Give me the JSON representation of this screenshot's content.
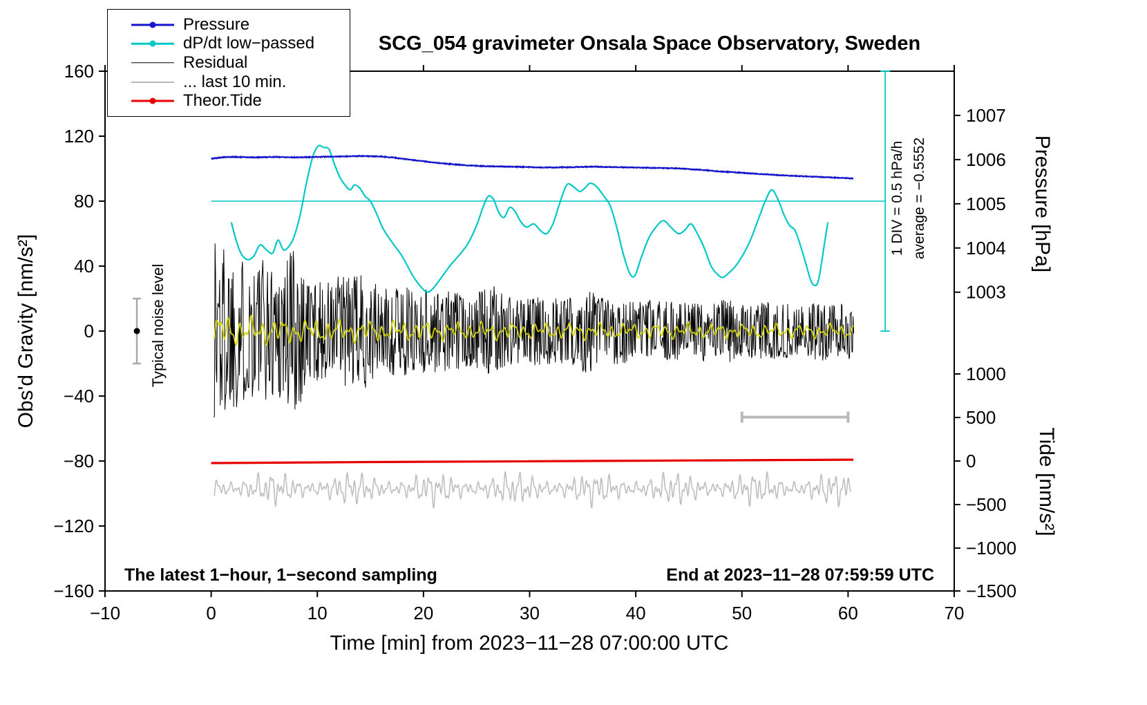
{
  "title": "SCG_054 gravimeter Onsala Space Observatory, Sweden",
  "legend": {
    "items": [
      {
        "id": "pressure",
        "label": "Pressure",
        "color": "#1414CC",
        "dot": true,
        "line_width": 3
      },
      {
        "id": "dpdt",
        "label": "dP/dt low−passed",
        "color": "#00C8C8",
        "dot": true,
        "line_width": 2.5
      },
      {
        "id": "residual",
        "label": "Residual",
        "color": "#000000",
        "dot": false,
        "line_width": 1.5
      },
      {
        "id": "last10",
        "label": "... last 10 min.",
        "color": "#B8B8B8",
        "dot": false,
        "line_width": 2
      },
      {
        "id": "tide",
        "label": "Theor.Tide",
        "color": "#E60000",
        "dot": true,
        "line_width": 3
      }
    ]
  },
  "chart_data": {
    "type": "line",
    "title": "SCG_054 gravimeter Onsala Space Observatory, Sweden",
    "x_axis": {
      "label": "Time [min] from 2023−11−28 07:00:00 UTC",
      "range": [
        -10,
        70
      ],
      "tick_values": [
        -10,
        0,
        10,
        20,
        30,
        40,
        50,
        60,
        70
      ],
      "tick_labels": [
        "−10",
        "0",
        "10",
        "20",
        "30",
        "40",
        "50",
        "60",
        "70"
      ]
    },
    "y_left": {
      "label": "Obs'd Gravity [nm/s²]",
      "range": [
        -160,
        160
      ],
      "tick_values": [
        -160,
        -120,
        -80,
        -40,
        0,
        40,
        80,
        120,
        160
      ],
      "tick_labels": [
        "−160",
        "−120",
        "−80",
        "−40",
        "0",
        "40",
        "80",
        "120",
        "160"
      ]
    },
    "y_right_pressure": {
      "label": "Pressure [hPa]",
      "tick_values": [
        1003,
        1004,
        1005,
        1006,
        1007
      ],
      "tick_labels": [
        "1003",
        "1004",
        "1005",
        "1006",
        "1007"
      ],
      "range_equiv": [
        996.24,
        1008.0
      ]
    },
    "y_right_tide": {
      "label": "Tide [nm/s²]",
      "tick_values": [
        -1500,
        -1000,
        -500,
        0,
        500,
        1000
      ],
      "tick_labels": [
        "−1500",
        "−1000",
        "−500",
        "0",
        "500",
        "1000"
      ],
      "range_equiv": [
        -1492.5,
        4477.6
      ]
    },
    "series": {
      "pressure": {
        "axis": "pressure",
        "units": "hPa",
        "color": "#1414CC",
        "seed": 5,
        "points": [
          [
            0,
            1006.02
          ],
          [
            1,
            1006.05
          ],
          [
            2,
            1006.06
          ],
          [
            4,
            1006.05
          ],
          [
            6,
            1006.06
          ],
          [
            8,
            1006.05
          ],
          [
            10,
            1006.06
          ],
          [
            12,
            1006.07
          ],
          [
            14,
            1006.08
          ],
          [
            16,
            1006.07
          ],
          [
            17,
            1006.05
          ],
          [
            18,
            1006.02
          ],
          [
            19,
            1005.99
          ],
          [
            20,
            1005.96
          ],
          [
            22,
            1005.91
          ],
          [
            24,
            1005.87
          ],
          [
            26,
            1005.85
          ],
          [
            28,
            1005.84
          ],
          [
            30,
            1005.83
          ],
          [
            32,
            1005.82
          ],
          [
            34,
            1005.83
          ],
          [
            36,
            1005.84
          ],
          [
            38,
            1005.83
          ],
          [
            40,
            1005.82
          ],
          [
            42,
            1005.81
          ],
          [
            44,
            1005.8
          ],
          [
            46,
            1005.77
          ],
          [
            48,
            1005.73
          ],
          [
            50,
            1005.7
          ],
          [
            52,
            1005.67
          ],
          [
            54,
            1005.64
          ],
          [
            56,
            1005.62
          ],
          [
            58,
            1005.6
          ],
          [
            60,
            1005.58
          ],
          [
            60.5,
            1005.57
          ]
        ]
      },
      "dpdt": {
        "axis": "gravity",
        "scale_note": "1 DIV = 0.5 hPa/h",
        "color": "#00C8C8",
        "points": [
          [
            1.9,
            67
          ],
          [
            2.3,
            57
          ],
          [
            2.8,
            48
          ],
          [
            3.4,
            44
          ],
          [
            4.0,
            46
          ],
          [
            4.6,
            53
          ],
          [
            5.2,
            50
          ],
          [
            5.8,
            48
          ],
          [
            6.3,
            56
          ],
          [
            6.8,
            50
          ],
          [
            7.3,
            52
          ],
          [
            7.8,
            58
          ],
          [
            8.4,
            72
          ],
          [
            9.0,
            92
          ],
          [
            9.6,
            108
          ],
          [
            10.1,
            114
          ],
          [
            10.6,
            113
          ],
          [
            11.1,
            112
          ],
          [
            11.6,
            103
          ],
          [
            12.1,
            95
          ],
          [
            12.6,
            90
          ],
          [
            13.1,
            87
          ],
          [
            13.5,
            90
          ],
          [
            14.0,
            88
          ],
          [
            14.5,
            83
          ],
          [
            15.0,
            80
          ],
          [
            15.6,
            72
          ],
          [
            16.2,
            63
          ],
          [
            17.0,
            55
          ],
          [
            18.0,
            46
          ],
          [
            19.0,
            34
          ],
          [
            19.8,
            27
          ],
          [
            20.4,
            24
          ],
          [
            21.0,
            27
          ],
          [
            21.8,
            34
          ],
          [
            22.6,
            41
          ],
          [
            23.4,
            47
          ],
          [
            24.2,
            54
          ],
          [
            25.0,
            65
          ],
          [
            25.6,
            76
          ],
          [
            26.1,
            83
          ],
          [
            26.6,
            81
          ],
          [
            27.1,
            73
          ],
          [
            27.6,
            70
          ],
          [
            28.1,
            76
          ],
          [
            28.6,
            74
          ],
          [
            29.1,
            68
          ],
          [
            29.7,
            64
          ],
          [
            30.4,
            66
          ],
          [
            31.0,
            62
          ],
          [
            31.6,
            60
          ],
          [
            32.2,
            66
          ],
          [
            32.8,
            78
          ],
          [
            33.5,
            90
          ],
          [
            34.1,
            89
          ],
          [
            34.7,
            86
          ],
          [
            35.2,
            88
          ],
          [
            35.7,
            91
          ],
          [
            36.3,
            89
          ],
          [
            37.0,
            83
          ],
          [
            37.6,
            77
          ],
          [
            38.2,
            64
          ],
          [
            38.8,
            48
          ],
          [
            39.4,
            36
          ],
          [
            39.9,
            34
          ],
          [
            40.5,
            45
          ],
          [
            41.2,
            57
          ],
          [
            41.9,
            64
          ],
          [
            42.6,
            68
          ],
          [
            43.3,
            64
          ],
          [
            44.0,
            60
          ],
          [
            44.6,
            62
          ],
          [
            45.2,
            66
          ],
          [
            45.8,
            60
          ],
          [
            46.4,
            52
          ],
          [
            47.1,
            40
          ],
          [
            47.7,
            35
          ],
          [
            48.2,
            33
          ],
          [
            48.8,
            36
          ],
          [
            49.4,
            40
          ],
          [
            50.1,
            47
          ],
          [
            50.8,
            56
          ],
          [
            51.5,
            68
          ],
          [
            52.2,
            80
          ],
          [
            52.8,
            87
          ],
          [
            53.4,
            81
          ],
          [
            54.0,
            71
          ],
          [
            54.5,
            65
          ],
          [
            55.0,
            62
          ],
          [
            55.5,
            53
          ],
          [
            56.0,
            42
          ],
          [
            56.5,
            31
          ],
          [
            56.9,
            28
          ],
          [
            57.2,
            31
          ],
          [
            57.5,
            42
          ],
          [
            57.8,
            55
          ],
          [
            58.1,
            67
          ]
        ]
      },
      "residual": {
        "axis": "gravity",
        "color": "#000000",
        "seed": 1337,
        "envelope": [
          [
            0.3,
            70
          ],
          [
            0.5,
            76
          ],
          [
            0.8,
            62
          ],
          [
            1.2,
            55
          ],
          [
            1.8,
            50
          ],
          [
            2.5,
            47
          ],
          [
            3.2,
            44
          ],
          [
            4,
            43
          ],
          [
            4.8,
            46
          ],
          [
            5.5,
            40
          ],
          [
            6.2,
            42
          ],
          [
            7,
            48
          ],
          [
            7.6,
            58
          ],
          [
            8.2,
            50
          ],
          [
            8.8,
            38
          ],
          [
            9.5,
            32
          ],
          [
            10.5,
            30
          ],
          [
            11.5,
            33
          ],
          [
            12.5,
            36
          ],
          [
            13.5,
            34
          ],
          [
            14.5,
            36
          ],
          [
            15.5,
            29
          ],
          [
            16.5,
            26
          ],
          [
            17.5,
            30
          ],
          [
            18.5,
            27
          ],
          [
            19.5,
            25
          ],
          [
            20.5,
            28
          ],
          [
            21.5,
            24
          ],
          [
            22.5,
            26
          ],
          [
            23.5,
            23
          ],
          [
            24.5,
            22
          ],
          [
            25.5,
            26
          ],
          [
            26.5,
            28
          ],
          [
            27.5,
            25
          ],
          [
            28.5,
            22
          ],
          [
            29.5,
            20
          ],
          [
            30.5,
            22
          ],
          [
            31.5,
            20
          ],
          [
            32.5,
            21
          ],
          [
            33.5,
            20
          ],
          [
            34.5,
            23
          ],
          [
            35.5,
            27
          ],
          [
            36.5,
            24
          ],
          [
            37.5,
            20
          ],
          [
            38.5,
            21
          ],
          [
            39.5,
            19
          ],
          [
            40.5,
            18
          ],
          [
            41.5,
            19
          ],
          [
            42.5,
            18
          ],
          [
            43.5,
            19
          ],
          [
            44.5,
            18
          ],
          [
            45.5,
            18
          ],
          [
            46.5,
            19
          ],
          [
            47.5,
            18
          ],
          [
            48.5,
            21
          ],
          [
            49.5,
            17
          ],
          [
            50.5,
            16
          ],
          [
            51.5,
            18
          ],
          [
            52.5,
            19
          ],
          [
            53.5,
            16
          ],
          [
            54.5,
            17
          ],
          [
            55.5,
            15
          ],
          [
            56.5,
            17
          ],
          [
            57.5,
            19
          ],
          [
            58.5,
            16
          ],
          [
            59.5,
            17
          ],
          [
            60.5,
            18
          ]
        ]
      },
      "residual_smoothed": {
        "axis": "gravity",
        "color": "#D2D200",
        "seed": 42,
        "envelope": [
          [
            0.3,
            10
          ],
          [
            3,
            8
          ],
          [
            8,
            7
          ],
          [
            15,
            6
          ],
          [
            25,
            5
          ],
          [
            40,
            4.5
          ],
          [
            60.5,
            4
          ]
        ]
      },
      "last10": {
        "axis": "gravity",
        "color": "#BEBEBE",
        "seed": 77,
        "center": -97,
        "amplitude": 9,
        "x_range": [
          0.3,
          60.3
        ]
      },
      "tide": {
        "axis": "tide",
        "units": "nm/s²",
        "color": "#E60000",
        "points": [
          [
            0,
            -24
          ],
          [
            5,
            -20
          ],
          [
            10,
            -16
          ],
          [
            15,
            -12
          ],
          [
            20,
            -9
          ],
          [
            25,
            -6
          ],
          [
            30,
            -3
          ],
          [
            35,
            0
          ],
          [
            40,
            3
          ],
          [
            45,
            6
          ],
          [
            50,
            9
          ],
          [
            55,
            12
          ],
          [
            60,
            15
          ],
          [
            60.5,
            15
          ]
        ]
      }
    },
    "annotations": {
      "noise_bar": {
        "x": -7,
        "y_center": 0,
        "half_range": 20,
        "label": "Typical noise level"
      },
      "dpdt_ref": {
        "hline_y": 80,
        "vline_x": 63.5,
        "vline_from": 0,
        "vline_to": 160,
        "div_text": "1 DIV = 0.5 hPa/h",
        "avg_text": "average = −0.5552"
      },
      "last10_bar": {
        "x_from": 50,
        "x_to": 60,
        "y": -53
      },
      "bottom_left": "The latest 1−hour, 1−second sampling",
      "bottom_right": "End at 2023−11−28 07:59:59 UTC"
    }
  }
}
